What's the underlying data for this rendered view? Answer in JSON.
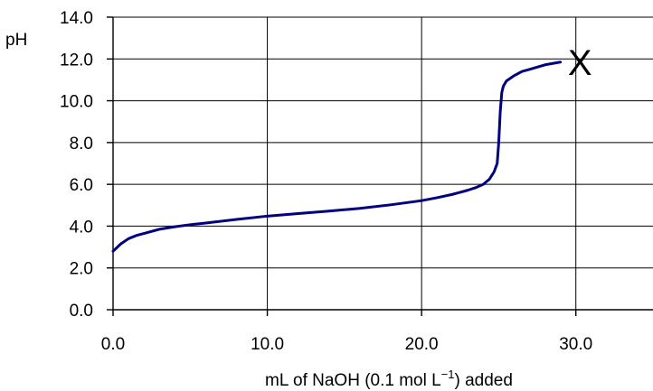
{
  "chart_data": {
    "type": "line",
    "title": "",
    "xlabel": {
      "prefix": "mL of NaOH (0.1 mol L",
      "superscript": "−1",
      "suffix": ") added"
    },
    "ylabel": "pH",
    "xlim": [
      0,
      35
    ],
    "ylim": [
      0,
      14
    ],
    "x_ticks": [
      "0.0",
      "10.0",
      "20.0",
      "30.0"
    ],
    "x_tick_values": [
      0,
      10,
      20,
      30
    ],
    "y_ticks": [
      "0.0",
      "2.0",
      "4.0",
      "6.0",
      "8.0",
      "10.0",
      "12.0",
      "14.0"
    ],
    "y_tick_values": [
      0,
      2,
      4,
      6,
      8,
      10,
      12,
      14
    ],
    "grid": {
      "horizontal": true,
      "vertical": true
    },
    "series": [
      {
        "color": "#000080",
        "x": [
          0,
          0.5,
          1,
          1.5,
          2,
          3,
          4,
          5,
          6,
          8,
          10,
          12,
          14,
          16,
          18,
          20,
          21,
          22,
          23,
          23.5,
          24,
          24.4,
          24.7,
          24.9,
          25.0,
          25.1,
          25.2,
          25.3,
          25.5,
          26,
          26.5,
          27,
          28,
          29
        ],
        "y": [
          2.8,
          3.15,
          3.4,
          3.55,
          3.65,
          3.85,
          3.97,
          4.07,
          4.15,
          4.32,
          4.48,
          4.6,
          4.72,
          4.85,
          5.02,
          5.22,
          5.36,
          5.52,
          5.72,
          5.84,
          6.0,
          6.25,
          6.6,
          7.0,
          8.0,
          9.5,
          10.4,
          10.7,
          10.95,
          11.2,
          11.4,
          11.5,
          11.72,
          11.85
        ]
      }
    ],
    "annotations": [
      {
        "text": "X",
        "x": 30.3,
        "y": 11.85
      }
    ]
  }
}
